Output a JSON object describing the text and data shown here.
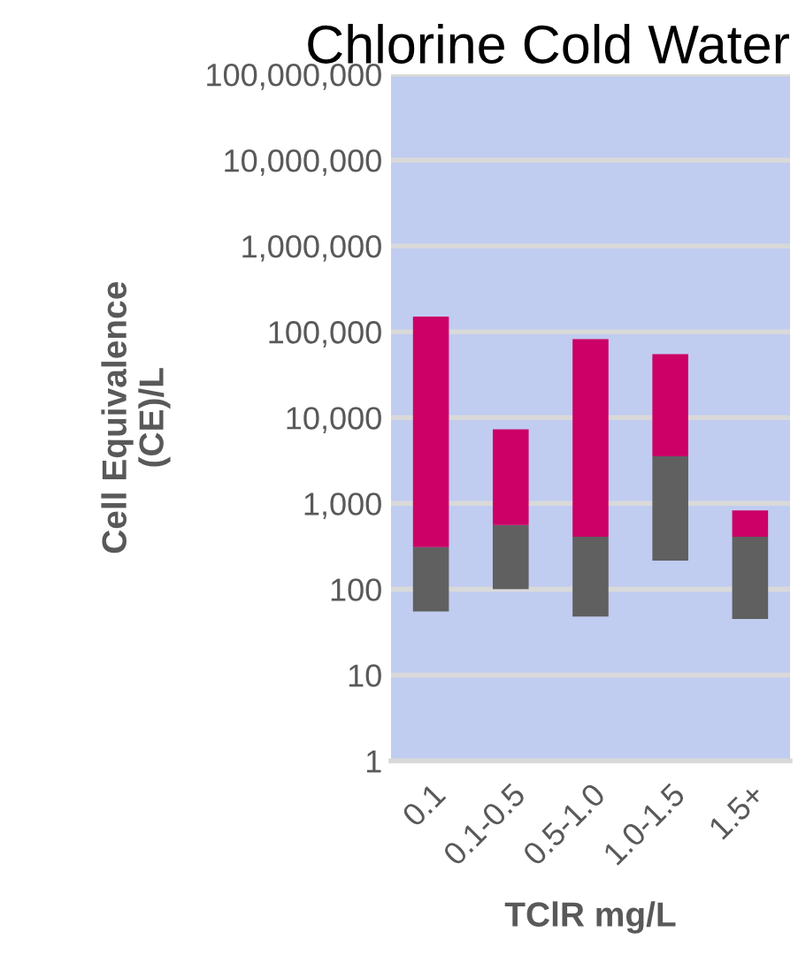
{
  "chart_data": {
    "type": "bar",
    "title": "Chlorine Cold Water",
    "xlabel": "TClR mg/L",
    "ylabel": "Cell Equivalence\n(CE)/L",
    "categories": [
      "0.1",
      "0.1-0.5",
      "0.5-1.0",
      "1.0-1.5",
      "1.5+"
    ],
    "log": true,
    "series": [
      {
        "color": "#606060",
        "base": [
          55,
          100,
          48,
          215,
          45
        ],
        "values": [
          255,
          460,
          362,
          3335,
          365
        ]
      },
      {
        "color": "#cc0066",
        "base": [
          310,
          560,
          410,
          3550,
          410
        ],
        "values": [
          149690,
          6740,
          81590,
          51450,
          420
        ]
      }
    ],
    "ylim": [
      1,
      100000000
    ],
    "yticks": [
      1,
      10,
      100,
      {
        "value": 1000,
        "label": "1,000"
      },
      {
        "value": 10000,
        "label": "10,000"
      },
      {
        "value": 100000,
        "label": "100,000"
      },
      {
        "value": 1000000,
        "label": "1,000,000"
      },
      {
        "value": 10000000,
        "label": "10,000,000"
      },
      {
        "value": 100000000,
        "label": "100,000,000"
      }
    ],
    "grid": "y"
  }
}
